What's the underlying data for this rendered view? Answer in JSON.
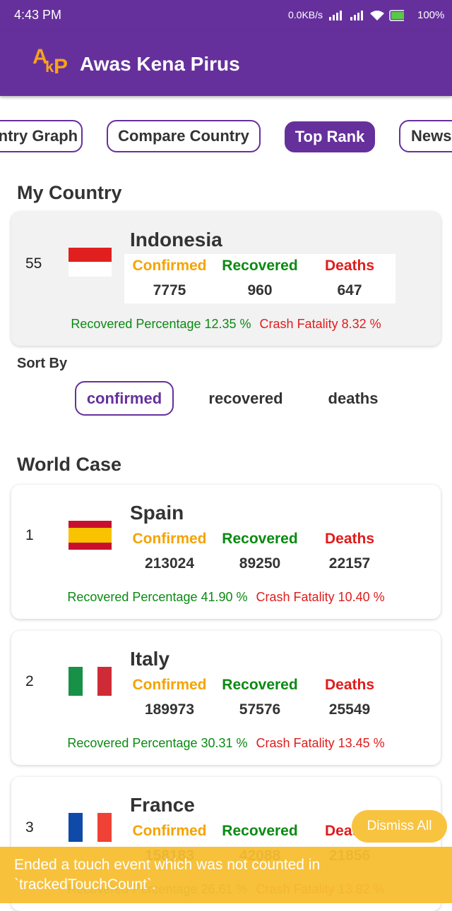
{
  "status_bar": {
    "time": "4:43 PM",
    "speed": "0.0KB/s",
    "battery": "100%"
  },
  "app_bar": {
    "logo": [
      "A",
      "k",
      "P"
    ],
    "title": "Awas Kena Pirus"
  },
  "tabs": [
    "Country Graph",
    "Compare Country",
    "Top Rank",
    "News"
  ],
  "columns": [
    "Confirmed",
    "Recovered",
    "Deaths"
  ],
  "my_country": {
    "heading": "My Country",
    "card": {
      "rank": 55,
      "name": "Indonesia",
      "values": [
        7775,
        960,
        647
      ],
      "recovered_percentage": "Recovered Percentage 12.35 %",
      "crash_fatality": "Crash Fatality 8.32 %"
    }
  },
  "sort_by": {
    "label": "Sort By",
    "options": [
      "confirmed",
      "recovered",
      "deaths"
    ]
  },
  "world_case": {
    "heading": "World Case",
    "rows": [
      {
        "rank": 1,
        "name": "Spain",
        "values": [
          213024,
          89250,
          22157
        ],
        "recovered_percentage": "Recovered Percentage 41.90 %",
        "crash_fatality": "Crash Fatality 10.40 %"
      },
      {
        "rank": 2,
        "name": "Italy",
        "values": [
          189973,
          57576,
          25549
        ],
        "recovered_percentage": "Recovered Percentage 30.31 %",
        "crash_fatality": "Crash Fatality 13.45 %"
      },
      {
        "rank": 3,
        "name": "France",
        "values": [
          158183,
          42088,
          21856
        ],
        "recovered_percentage": "Recovered Percentage 26.61 %",
        "crash_fatality": "Crash Fatality 13.82 %"
      }
    ]
  },
  "toast": {
    "text": "Ended a touch event which was not counted in `trackedTouchCount`.",
    "dismiss": "Dismiss All"
  }
}
